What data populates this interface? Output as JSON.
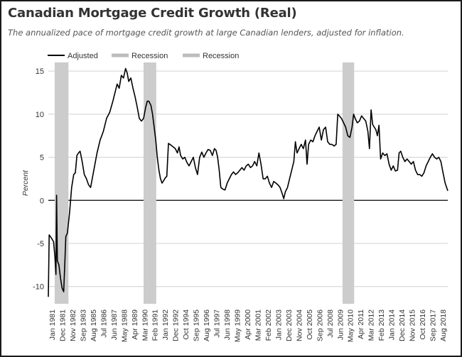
{
  "chart_data": {
    "type": "line",
    "title": "Canadian Mortgage Credit Growth (Real)",
    "subtitle": "The annualized pace of mortgage credit growth at large Canadian lenders, adjusted for inflation.",
    "ylabel": "Percent",
    "xlabel": "",
    "ylim": [
      -12,
      16
    ],
    "yticks": [
      -10,
      -5,
      0,
      5,
      10,
      15
    ],
    "xlim": [
      1981.0,
      2018.75
    ],
    "grid": true,
    "legend": {
      "position": "top-left",
      "entries": [
        "Adjusted",
        "Recession",
        "Recession"
      ]
    },
    "xtick_labels": [
      "Jan 1981",
      "Dec 1981",
      "Nov 1982",
      "Sep 1983",
      "Aug 1985",
      "Jul 1986",
      "Jun 1987",
      "May 1988",
      "Apr 1989",
      "Mar 1990",
      "Feb 1991",
      "Jan 1992",
      "Dec 1992",
      "Oct 1994",
      "Sep 1995",
      "Aug 1996",
      "Jul 1997",
      "Jun 1998",
      "May 1999",
      "Apr 2000",
      "Mar 2001",
      "Feb 2002",
      "Jan 2003",
      "Dec 2003",
      "Nov 2004",
      "Oct 2005",
      "Sep 2006",
      "Jul 2008",
      "Jun 2009",
      "May 2010",
      "Apr 2011",
      "Mar 2012",
      "Feb 2013",
      "Jan 2014",
      "Dec 2014",
      "Nov 2015",
      "Oct 2016",
      "Sep 2017",
      "Aug 2018"
    ],
    "recessions": [
      {
        "name": "Recession",
        "start": 1981.6,
        "end": 1982.9
      },
      {
        "name": "Recession",
        "start": 1990.0,
        "end": 1991.2
      },
      {
        "name": "Recession",
        "start": 2008.8,
        "end": 2009.9
      }
    ],
    "series": [
      {
        "name": "Adjusted",
        "color": "#000000",
        "points": [
          [
            1981.0,
            -11.2
          ],
          [
            1981.08,
            -4.0
          ],
          [
            1981.3,
            -4.4
          ],
          [
            1981.5,
            -4.8
          ],
          [
            1981.62,
            -6.5
          ],
          [
            1981.72,
            -8.6
          ],
          [
            1981.78,
            0.6
          ],
          [
            1981.85,
            -7.0
          ],
          [
            1982.0,
            -7.5
          ],
          [
            1982.15,
            -9.0
          ],
          [
            1982.3,
            -10.2
          ],
          [
            1982.45,
            -10.6
          ],
          [
            1982.55,
            -7.5
          ],
          [
            1982.65,
            -4.2
          ],
          [
            1982.8,
            -3.8
          ],
          [
            1983.0,
            -1.5
          ],
          [
            1983.2,
            1.5
          ],
          [
            1983.4,
            3.0
          ],
          [
            1983.55,
            3.2
          ],
          [
            1983.7,
            5.2
          ],
          [
            1983.85,
            5.5
          ],
          [
            1984.0,
            5.7
          ],
          [
            1984.2,
            4.5
          ],
          [
            1984.4,
            3.0
          ],
          [
            1984.6,
            2.5
          ],
          [
            1984.8,
            1.8
          ],
          [
            1985.0,
            1.5
          ],
          [
            1985.3,
            3.5
          ],
          [
            1985.6,
            5.5
          ],
          [
            1985.9,
            7.0
          ],
          [
            1986.2,
            8.0
          ],
          [
            1986.5,
            9.5
          ],
          [
            1986.8,
            10.2
          ],
          [
            1987.1,
            11.5
          ],
          [
            1987.3,
            12.5
          ],
          [
            1987.5,
            13.5
          ],
          [
            1987.7,
            13.0
          ],
          [
            1987.9,
            14.5
          ],
          [
            1988.1,
            14.2
          ],
          [
            1988.3,
            15.3
          ],
          [
            1988.45,
            14.8
          ],
          [
            1988.6,
            13.8
          ],
          [
            1988.8,
            14.2
          ],
          [
            1989.0,
            13.0
          ],
          [
            1989.2,
            12.0
          ],
          [
            1989.4,
            10.8
          ],
          [
            1989.6,
            9.5
          ],
          [
            1989.8,
            9.2
          ],
          [
            1990.0,
            9.5
          ],
          [
            1990.2,
            10.8
          ],
          [
            1990.35,
            11.5
          ],
          [
            1990.5,
            11.5
          ],
          [
            1990.7,
            11.0
          ],
          [
            1990.85,
            10.0
          ],
          [
            1991.0,
            8.5
          ],
          [
            1991.15,
            7.0
          ],
          [
            1991.3,
            5.0
          ],
          [
            1991.45,
            3.5
          ],
          [
            1991.6,
            2.5
          ],
          [
            1991.75,
            2.0
          ],
          [
            1991.9,
            2.3
          ],
          [
            1992.05,
            2.6
          ],
          [
            1992.2,
            2.8
          ],
          [
            1992.35,
            6.6
          ],
          [
            1992.6,
            6.4
          ],
          [
            1992.8,
            6.2
          ],
          [
            1993.0,
            6.0
          ],
          [
            1993.2,
            5.5
          ],
          [
            1993.35,
            6.2
          ],
          [
            1993.5,
            5.2
          ],
          [
            1993.7,
            4.8
          ],
          [
            1993.9,
            5.0
          ],
          [
            1994.1,
            4.4
          ],
          [
            1994.3,
            4.0
          ],
          [
            1994.5,
            4.5
          ],
          [
            1994.7,
            5.0
          ],
          [
            1994.9,
            3.8
          ],
          [
            1995.1,
            3.0
          ],
          [
            1995.3,
            5.0
          ],
          [
            1995.5,
            5.6
          ],
          [
            1995.7,
            5.0
          ],
          [
            1995.9,
            5.5
          ],
          [
            1996.1,
            5.9
          ],
          [
            1996.3,
            5.8
          ],
          [
            1996.5,
            5.2
          ],
          [
            1996.7,
            6.0
          ],
          [
            1996.85,
            5.8
          ],
          [
            1997.0,
            5.0
          ],
          [
            1997.15,
            3.5
          ],
          [
            1997.3,
            1.5
          ],
          [
            1997.5,
            1.3
          ],
          [
            1997.7,
            1.2
          ],
          [
            1997.9,
            2.0
          ],
          [
            1998.1,
            2.5
          ],
          [
            1998.3,
            3.0
          ],
          [
            1998.5,
            3.3
          ],
          [
            1998.7,
            3.0
          ],
          [
            1998.9,
            3.2
          ],
          [
            1999.1,
            3.5
          ],
          [
            1999.3,
            3.8
          ],
          [
            1999.5,
            3.5
          ],
          [
            1999.7,
            4.0
          ],
          [
            1999.9,
            4.2
          ],
          [
            2000.1,
            3.8
          ],
          [
            2000.3,
            4.0
          ],
          [
            2000.5,
            4.5
          ],
          [
            2000.7,
            4.0
          ],
          [
            2000.9,
            5.5
          ],
          [
            2001.1,
            4.2
          ],
          [
            2001.3,
            2.5
          ],
          [
            2001.5,
            2.5
          ],
          [
            2001.7,
            2.8
          ],
          [
            2001.9,
            2.0
          ],
          [
            2002.1,
            1.5
          ],
          [
            2002.3,
            2.2
          ],
          [
            2002.5,
            2.0
          ],
          [
            2002.7,
            1.8
          ],
          [
            2002.9,
            1.5
          ],
          [
            2003.1,
            0.8
          ],
          [
            2003.25,
            0.2
          ],
          [
            2003.4,
            1.0
          ],
          [
            2003.6,
            1.5
          ],
          [
            2003.8,
            2.5
          ],
          [
            2004.0,
            3.5
          ],
          [
            2004.2,
            4.5
          ],
          [
            2004.35,
            6.8
          ],
          [
            2004.5,
            5.5
          ],
          [
            2004.7,
            6.0
          ],
          [
            2004.9,
            6.5
          ],
          [
            2005.1,
            6.0
          ],
          [
            2005.3,
            7.0
          ],
          [
            2005.45,
            4.2
          ],
          [
            2005.6,
            6.5
          ],
          [
            2005.8,
            7.0
          ],
          [
            2006.0,
            6.8
          ],
          [
            2006.2,
            7.5
          ],
          [
            2006.4,
            8.0
          ],
          [
            2006.6,
            8.5
          ],
          [
            2006.8,
            7.0
          ],
          [
            2007.0,
            8.2
          ],
          [
            2007.2,
            8.5
          ],
          [
            2007.4,
            6.8
          ],
          [
            2007.6,
            6.5
          ],
          [
            2007.8,
            6.5
          ],
          [
            2008.0,
            6.3
          ],
          [
            2008.2,
            6.5
          ],
          [
            2008.35,
            10.0
          ],
          [
            2008.5,
            9.8
          ],
          [
            2008.7,
            9.5
          ],
          [
            2008.9,
            9.0
          ],
          [
            2009.1,
            8.5
          ],
          [
            2009.3,
            7.5
          ],
          [
            2009.5,
            7.3
          ],
          [
            2009.7,
            8.5
          ],
          [
            2009.85,
            10.0
          ],
          [
            2010.0,
            9.5
          ],
          [
            2010.2,
            9.0
          ],
          [
            2010.4,
            9.2
          ],
          [
            2010.6,
            9.8
          ],
          [
            2010.8,
            9.5
          ],
          [
            2011.0,
            9.2
          ],
          [
            2011.2,
            8.0
          ],
          [
            2011.35,
            6.0
          ],
          [
            2011.5,
            10.5
          ],
          [
            2011.65,
            8.8
          ],
          [
            2011.8,
            8.5
          ],
          [
            2011.95,
            8.2
          ],
          [
            2012.1,
            7.5
          ],
          [
            2012.25,
            8.7
          ],
          [
            2012.4,
            4.8
          ],
          [
            2012.6,
            5.5
          ],
          [
            2012.8,
            5.2
          ],
          [
            2013.0,
            5.4
          ],
          [
            2013.2,
            4.2
          ],
          [
            2013.4,
            3.5
          ],
          [
            2013.6,
            4.0
          ],
          [
            2013.8,
            3.4
          ],
          [
            2014.0,
            3.5
          ],
          [
            2014.15,
            5.5
          ],
          [
            2014.3,
            5.7
          ],
          [
            2014.5,
            5.0
          ],
          [
            2014.7,
            4.5
          ],
          [
            2014.9,
            4.8
          ],
          [
            2015.1,
            4.5
          ],
          [
            2015.3,
            4.2
          ],
          [
            2015.5,
            4.5
          ],
          [
            2015.7,
            3.5
          ],
          [
            2015.9,
            3.0
          ],
          [
            2016.1,
            3.0
          ],
          [
            2016.3,
            2.8
          ],
          [
            2016.5,
            3.2
          ],
          [
            2016.7,
            4.0
          ],
          [
            2016.9,
            4.5
          ],
          [
            2017.1,
            5.0
          ],
          [
            2017.3,
            5.4
          ],
          [
            2017.5,
            5.0
          ],
          [
            2017.7,
            4.8
          ],
          [
            2017.9,
            5.0
          ],
          [
            2018.1,
            4.5
          ],
          [
            2018.3,
            3.2
          ],
          [
            2018.5,
            2.0
          ],
          [
            2018.75,
            1.1
          ]
        ]
      }
    ]
  }
}
